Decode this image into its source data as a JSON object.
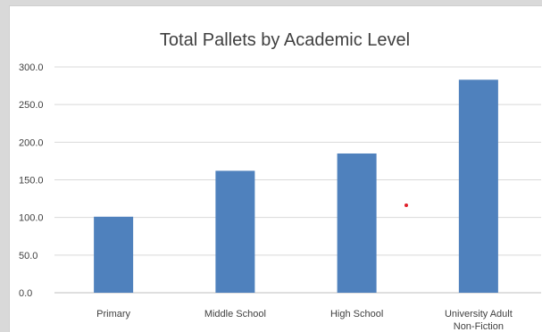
{
  "chart_data": {
    "type": "bar",
    "title": "Total Pallets by Academic Level",
    "categories": [
      [
        "Primary"
      ],
      [
        "Middle School"
      ],
      [
        "High School"
      ],
      [
        "University Adult",
        "Non-Fiction"
      ]
    ],
    "values": [
      101,
      162,
      185,
      283
    ],
    "ylim": [
      0,
      300
    ],
    "yticks": [
      "0.0",
      "50.0",
      "100.0",
      "150.0",
      "200.0",
      "250.0",
      "300.0"
    ],
    "ytick_values": [
      0,
      50,
      100,
      150,
      200,
      250,
      300
    ],
    "xlabel": "",
    "ylabel": "",
    "grid": true,
    "bar_color": "#4f81bd",
    "marker_color": "#e0202a"
  }
}
